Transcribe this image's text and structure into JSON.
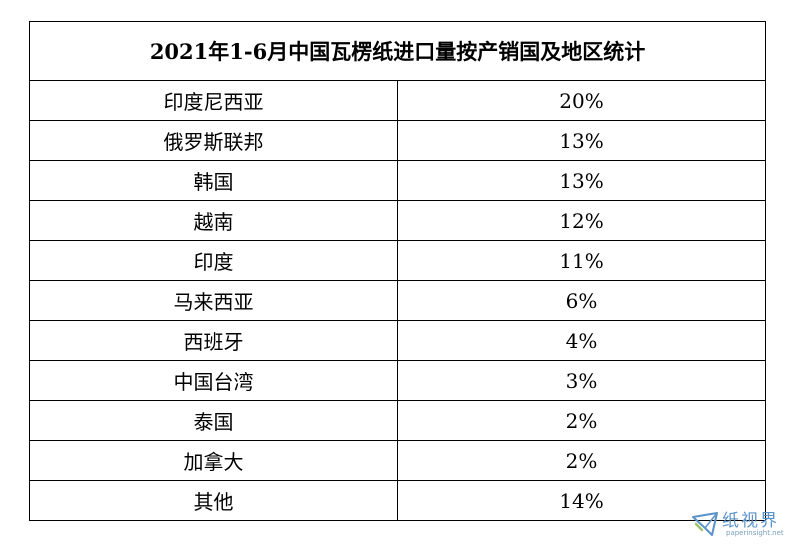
{
  "table": {
    "title": "2021年1-6月中国瓦楞纸进口量按产销国及地区统计",
    "rows": [
      {
        "region": "印度尼西亚",
        "share": "20%"
      },
      {
        "region": "俄罗斯联邦",
        "share": "13%"
      },
      {
        "region": "韩国",
        "share": "13%"
      },
      {
        "region": "越南",
        "share": "12%"
      },
      {
        "region": "印度",
        "share": "11%"
      },
      {
        "region": "马来西亚",
        "share": "6%"
      },
      {
        "region": "西班牙",
        "share": "4%"
      },
      {
        "region": "中国台湾",
        "share": "3%"
      },
      {
        "region": "泰国",
        "share": "2%"
      },
      {
        "region": "加拿大",
        "share": "2%"
      },
      {
        "region": "其他",
        "share": "14%"
      }
    ]
  },
  "watermark": {
    "name": "纸视界",
    "site": "paperinsight.net",
    "icon": "paperinsight-logo-icon",
    "color": "#5b93c9"
  }
}
